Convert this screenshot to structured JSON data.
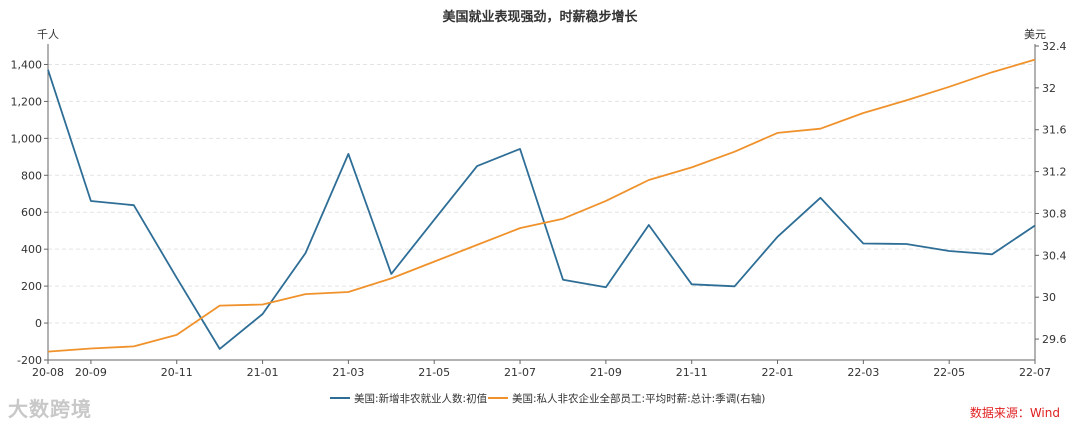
{
  "chart_data": {
    "type": "line",
    "title": "美国就业表现强劲，时薪稳步增长",
    "left_axis_unit": "千人",
    "right_axis_unit": "美元",
    "x": [
      "20-08",
      "20-09",
      "20-10",
      "20-11",
      "20-12",
      "21-01",
      "21-02",
      "21-03",
      "21-04",
      "21-05",
      "21-06",
      "21-07",
      "21-08",
      "21-09",
      "21-10",
      "21-11",
      "21-12",
      "22-01",
      "22-02",
      "22-03",
      "22-04",
      "22-05",
      "22-06",
      "22-07"
    ],
    "x_tick_labels": [
      "20-08",
      "20-09",
      "20-11",
      "21-01",
      "21-03",
      "21-05",
      "21-07",
      "21-09",
      "21-11",
      "22-01",
      "22-03",
      "22-05",
      "22-07"
    ],
    "left_ylim": [
      -200,
      1500
    ],
    "left_ticks": [
      "-200",
      "0",
      "200",
      "400",
      "600",
      "800",
      "1,000",
      "1,200",
      "1,400"
    ],
    "right_ylim": [
      29.4,
      32.4
    ],
    "right_ticks": [
      "29.6",
      "30",
      "30.4",
      "30.8",
      "31.2",
      "31.6",
      "32",
      "32.4"
    ],
    "grid": true,
    "legend_position": "bottom",
    "series": [
      {
        "name": "美国:新增非农就业人数:初值",
        "axis": "left",
        "color": "#2e6e96",
        "values": [
          1371,
          661,
          638,
          245,
          -140,
          49,
          379,
          916,
          266,
          559,
          850,
          943,
          235,
          194,
          531,
          210,
          199,
          467,
          678,
          431,
          428,
          390,
          372,
          528
        ]
      },
      {
        "name": "美国:私人非农企业全部员工:平均时薪:总计:季调(右轴)",
        "axis": "right",
        "color": "#f0922c",
        "values": [
          29.48,
          29.51,
          29.53,
          29.64,
          29.92,
          29.93,
          30.03,
          30.05,
          30.18,
          30.34,
          30.5,
          30.66,
          30.75,
          30.92,
          31.12,
          31.24,
          31.39,
          31.57,
          31.61,
          31.76,
          31.88,
          32.01,
          32.15,
          32.27
        ]
      }
    ]
  },
  "watermark": "大数跨境",
  "source_note": "数据来源：Wind"
}
